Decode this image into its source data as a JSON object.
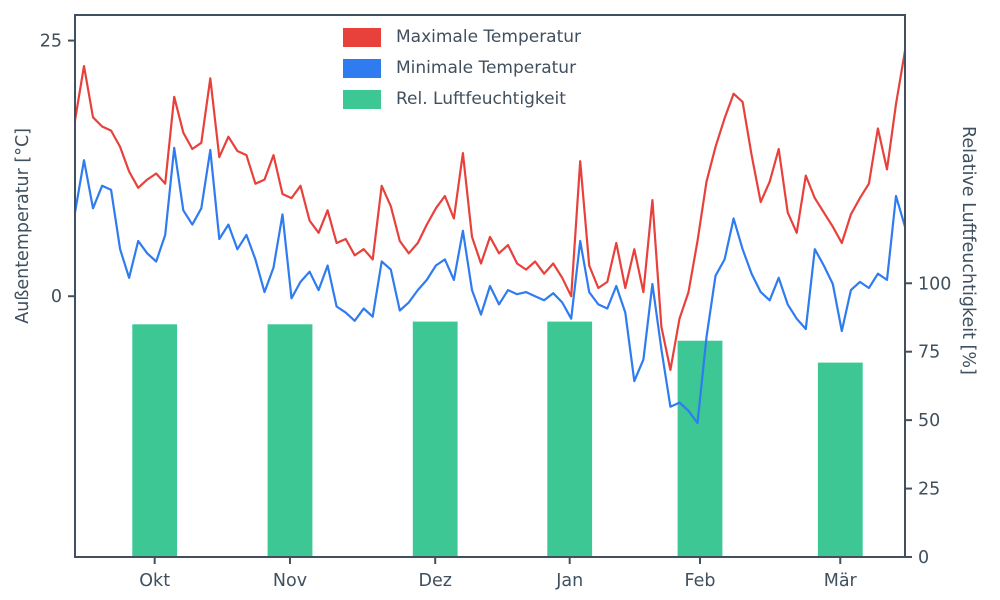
{
  "chart_data": {
    "type": "line+bar",
    "title": "",
    "background": "#ffffff",
    "axis_color": "#40505e",
    "grid": false,
    "left_axis": {
      "label": "Außentemperatur [°C]",
      "ticks": [
        25,
        0
      ],
      "range": [
        -25.5,
        27.5
      ]
    },
    "right_axis": {
      "label": "Relative Luftfeuchtigkeit [%]",
      "ticks": [
        100,
        75,
        50,
        25,
        0
      ],
      "range": [
        0,
        198
      ]
    },
    "x_axis": {
      "tick_labels": [
        "Okt",
        "Nov",
        "Dez",
        "Jan",
        "Feb",
        "Mär"
      ],
      "tick_positions": [
        0.096,
        0.259,
        0.434,
        0.596,
        0.753,
        0.922
      ],
      "bar_width_fraction": 0.054
    },
    "legend": {
      "position": "upper-center",
      "entries": [
        {
          "label": "Maximale Temperatur",
          "color": "#e8413c"
        },
        {
          "label": "Minimale Temperatur",
          "color": "#2f7bf0"
        },
        {
          "label": "Rel. Luftfeuchtigkeit",
          "color": "#3dc795"
        }
      ]
    },
    "series": [
      {
        "name": "Maximale Temperatur",
        "type": "line",
        "axis": "left",
        "color": "#e8413c",
        "unit": "°C",
        "values": [
          17.2,
          22.5,
          17.5,
          16.6,
          16.2,
          14.6,
          12.2,
          10.6,
          11.4,
          12.0,
          11.0,
          19.5,
          16.0,
          14.4,
          15.0,
          21.3,
          13.6,
          15.6,
          14.2,
          13.8,
          11.0,
          11.4,
          13.8,
          10.0,
          9.6,
          10.8,
          7.4,
          6.2,
          8.4,
          5.2,
          5.6,
          4.0,
          4.6,
          3.6,
          10.8,
          8.8,
          5.4,
          4.2,
          5.2,
          7.0,
          8.6,
          9.8,
          7.6,
          14.0,
          5.8,
          3.2,
          5.8,
          4.2,
          5.0,
          3.2,
          2.6,
          3.4,
          2.2,
          3.2,
          1.8,
          0.0,
          13.2,
          3.0,
          0.8,
          1.4,
          5.2,
          0.8,
          4.6,
          0.4,
          9.4,
          -3.0,
          -7.2,
          -2.2,
          0.4,
          5.4,
          11.2,
          14.6,
          17.4,
          19.8,
          19.0,
          13.8,
          9.2,
          11.2,
          14.4,
          8.2,
          6.2,
          11.8,
          9.6,
          8.2,
          6.8,
          5.2,
          8.0,
          9.6,
          11.0,
          16.4,
          12.4,
          18.8,
          24.0
        ]
      },
      {
        "name": "Minimale Temperatur",
        "type": "line",
        "axis": "left",
        "color": "#2f7bf0",
        "unit": "°C",
        "values": [
          8.2,
          13.3,
          8.6,
          10.8,
          10.4,
          4.6,
          1.8,
          5.4,
          4.2,
          3.4,
          6.0,
          14.5,
          8.4,
          7.0,
          8.6,
          14.3,
          5.6,
          7.0,
          4.6,
          6.0,
          3.6,
          0.4,
          2.8,
          8.0,
          -0.2,
          1.4,
          2.4,
          0.6,
          3.0,
          -1.0,
          -1.6,
          -2.4,
          -1.2,
          -2.0,
          3.4,
          2.6,
          -1.4,
          -0.6,
          0.6,
          1.6,
          3.0,
          3.6,
          1.6,
          6.4,
          0.6,
          -1.8,
          1.0,
          -0.8,
          0.6,
          0.2,
          0.4,
          0.0,
          -0.4,
          0.3,
          -0.6,
          -2.2,
          5.4,
          0.4,
          -0.8,
          -1.2,
          1.0,
          -1.6,
          -8.3,
          -6.2,
          1.2,
          -5.2,
          -10.8,
          -10.4,
          -11.2,
          -12.4,
          -4.0,
          2.0,
          3.6,
          7.6,
          4.6,
          2.2,
          0.4,
          -0.4,
          1.8,
          -0.8,
          -2.2,
          -3.2,
          4.6,
          3.0,
          1.2,
          -3.4,
          0.6,
          1.4,
          0.8,
          2.2,
          1.6,
          9.8,
          6.8
        ]
      },
      {
        "name": "Rel. Luftfeuchtigkeit",
        "type": "bar",
        "axis": "right",
        "color": "#3dc795",
        "unit": "%",
        "categories": [
          "Okt",
          "Nov",
          "Dez",
          "Jan",
          "Feb",
          "Mär"
        ],
        "values": [
          85,
          85,
          86,
          86,
          79,
          71
        ]
      }
    ]
  }
}
